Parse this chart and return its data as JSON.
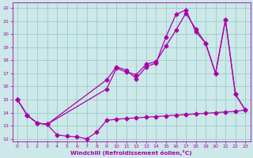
{
  "xlabel": "Windchill (Refroidissement éolien,°C)",
  "bg_color": "#cce8e8",
  "line_color": "#aa00aa",
  "grid_color": "#99cccc",
  "xlim": [
    -0.5,
    23.5
  ],
  "ylim": [
    11.8,
    22.4
  ],
  "xticks": [
    0,
    1,
    2,
    3,
    4,
    5,
    6,
    7,
    8,
    9,
    10,
    11,
    12,
    13,
    14,
    15,
    16,
    17,
    18,
    19,
    20,
    21,
    22,
    23
  ],
  "yticks": [
    12,
    13,
    14,
    15,
    16,
    17,
    18,
    19,
    20,
    21,
    22
  ],
  "line1_x": [
    0,
    1,
    2,
    3,
    4,
    5,
    6,
    7,
    8,
    9,
    10,
    11,
    12,
    13,
    14,
    15,
    16,
    17,
    18,
    19,
    20,
    21,
    22,
    23
  ],
  "line1_y": [
    15.0,
    13.8,
    13.2,
    13.1,
    12.3,
    12.2,
    12.15,
    12.0,
    12.5,
    13.4,
    13.5,
    13.55,
    13.6,
    13.65,
    13.7,
    13.75,
    13.8,
    13.85,
    13.9,
    13.95,
    14.0,
    14.05,
    14.1,
    14.2
  ],
  "line2_x": [
    0,
    1,
    2,
    3,
    9,
    10,
    11,
    12,
    13,
    14,
    15,
    16,
    17,
    18,
    19,
    20,
    21,
    22,
    23
  ],
  "line2_y": [
    15.0,
    13.8,
    13.2,
    13.1,
    16.5,
    17.5,
    17.25,
    16.6,
    17.5,
    17.8,
    19.8,
    21.5,
    21.85,
    20.2,
    19.3,
    17.0,
    21.1,
    15.4,
    14.2
  ],
  "line3_x": [
    0,
    1,
    2,
    3,
    9,
    10,
    11,
    12,
    13,
    14,
    15,
    16,
    17,
    18,
    19,
    20,
    21,
    22,
    23
  ],
  "line3_y": [
    15.0,
    13.8,
    13.2,
    13.1,
    15.8,
    17.4,
    17.1,
    16.9,
    17.7,
    17.9,
    19.1,
    20.3,
    21.6,
    20.4,
    19.3,
    17.0,
    21.1,
    15.4,
    14.2
  ]
}
